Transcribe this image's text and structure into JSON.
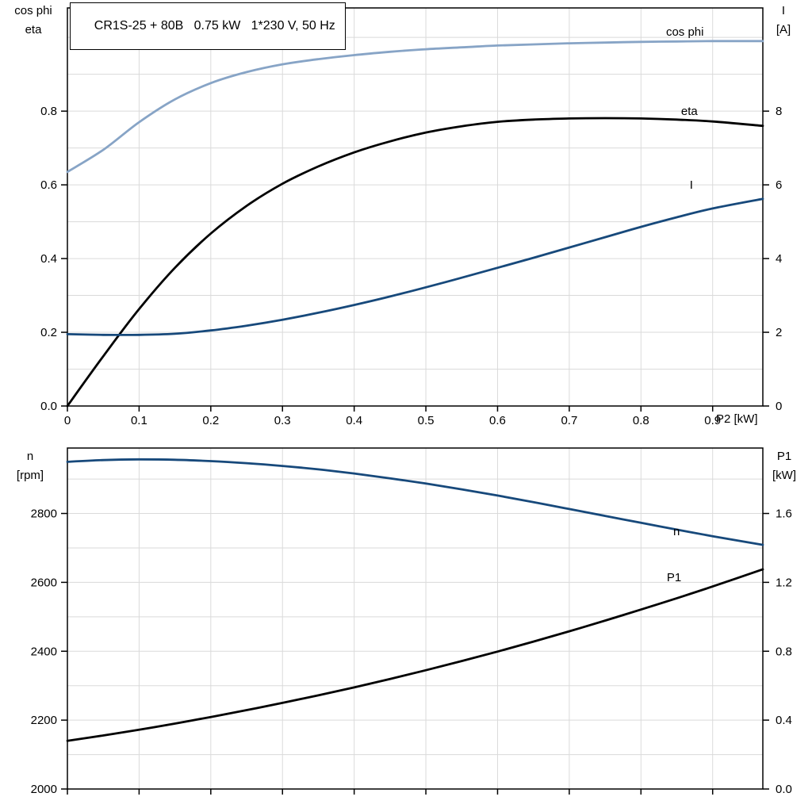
{
  "title": "CR1S-25 + 80B   0.75 kW   1*230 V, 50 Hz",
  "axes": {
    "top_left": [
      "cos phi",
      "eta"
    ],
    "top_right": [
      "I",
      "[A]"
    ],
    "x_label": "P2 [kW]",
    "bottom_left": [
      "n",
      "[rpm]"
    ],
    "bottom_right": [
      "P1",
      "[kW]"
    ]
  },
  "colors": {
    "light_blue": "#87A4C6",
    "dark_blue": "#17497B",
    "black": "#000000",
    "grid": "#DADADA"
  },
  "chart_data": [
    {
      "type": "line",
      "panel": "top",
      "xlabel": "P2 [kW]",
      "ylabel_left": "cos phi / eta",
      "ylabel_right": "I [A]",
      "grid": true,
      "xlim": [
        0,
        0.97
      ],
      "ylim_left": [
        0,
        1.08
      ],
      "ylim_right": [
        0,
        10.8
      ],
      "x_grid": [
        0.1,
        0.2,
        0.3,
        0.4,
        0.5,
        0.6,
        0.7,
        0.8,
        0.9
      ],
      "y_grid": [
        0.1,
        0.2,
        0.3,
        0.4,
        0.5,
        0.6,
        0.7,
        0.8,
        0.9,
        1.0
      ],
      "x_tick_labels": true,
      "x_ticks": [
        {
          "v": 0,
          "t": "0"
        },
        {
          "v": 0.1,
          "t": "0.1"
        },
        {
          "v": 0.2,
          "t": "0.2"
        },
        {
          "v": 0.3,
          "t": "0.3"
        },
        {
          "v": 0.4,
          "t": "0.4"
        },
        {
          "v": 0.5,
          "t": "0.5"
        },
        {
          "v": 0.6,
          "t": "0.6"
        },
        {
          "v": 0.7,
          "t": "0.7"
        },
        {
          "v": 0.8,
          "t": "0.8"
        },
        {
          "v": 0.9,
          "t": "0.9"
        }
      ],
      "y_ticks_left": [
        {
          "v": 0,
          "t": "0.0"
        },
        {
          "v": 0.2,
          "t": "0.2"
        },
        {
          "v": 0.4,
          "t": "0.4"
        },
        {
          "v": 0.6,
          "t": "0.6"
        },
        {
          "v": 0.8,
          "t": "0.8"
        }
      ],
      "y_ticks_right": [
        {
          "v": 0,
          "t": "0"
        },
        {
          "v": 2,
          "t": "2"
        },
        {
          "v": 4,
          "t": "4"
        },
        {
          "v": 6,
          "t": "6"
        },
        {
          "v": 8,
          "t": "8"
        }
      ],
      "x": [
        0,
        0.05,
        0.1,
        0.15,
        0.2,
        0.25,
        0.3,
        0.35,
        0.4,
        0.45,
        0.5,
        0.55,
        0.6,
        0.65,
        0.7,
        0.75,
        0.8,
        0.85,
        0.9,
        0.97
      ],
      "series": [
        {
          "id": "cos-phi",
          "label": "cos phi",
          "axis": "left",
          "color_key": "light_blue",
          "label_at": {
            "x": 0.835,
            "y": 1.015
          },
          "y": [
            0.635,
            0.695,
            0.77,
            0.832,
            0.876,
            0.906,
            0.927,
            0.941,
            0.952,
            0.961,
            0.968,
            0.973,
            0.978,
            0.981,
            0.984,
            0.986,
            0.988,
            0.989,
            0.99,
            0.99
          ]
        },
        {
          "id": "eta",
          "label": "eta",
          "axis": "left",
          "color_key": "black",
          "label_at": {
            "x": 0.856,
            "y": 0.8
          },
          "y": [
            0.0,
            0.135,
            0.263,
            0.375,
            0.468,
            0.543,
            0.603,
            0.65,
            0.688,
            0.718,
            0.742,
            0.759,
            0.771,
            0.777,
            0.78,
            0.781,
            0.78,
            0.777,
            0.772,
            0.76
          ]
        },
        {
          "id": "current",
          "label": "I",
          "axis": "right",
          "color_key": "dark_blue",
          "label_at": {
            "x": 0.868,
            "y": 6.0
          },
          "y": [
            1.95,
            1.93,
            1.93,
            1.96,
            2.05,
            2.18,
            2.34,
            2.53,
            2.74,
            2.97,
            3.22,
            3.48,
            3.75,
            4.02,
            4.3,
            4.58,
            4.86,
            5.12,
            5.36,
            5.62
          ]
        }
      ]
    },
    {
      "type": "line",
      "panel": "bottom",
      "xlabel": "P2 [kW]",
      "ylabel_left": "n [rpm]",
      "ylabel_right": "P1 [kW]",
      "grid": true,
      "xlim": [
        0,
        0.97
      ],
      "ylim_left": [
        2000,
        2990
      ],
      "ylim_right": [
        0,
        1.98
      ],
      "x_grid": [
        0.1,
        0.2,
        0.3,
        0.4,
        0.5,
        0.6,
        0.7,
        0.8,
        0.9
      ],
      "y_grid": [
        2100,
        2200,
        2300,
        2400,
        2500,
        2600,
        2700,
        2800,
        2900
      ],
      "x_tick_labels": false,
      "x_ticks": [
        {
          "v": 0,
          "t": "0"
        },
        {
          "v": 0.1,
          "t": "0.1"
        },
        {
          "v": 0.2,
          "t": "0.2"
        },
        {
          "v": 0.3,
          "t": "0.3"
        },
        {
          "v": 0.4,
          "t": "0.4"
        },
        {
          "v": 0.5,
          "t": "0.5"
        },
        {
          "v": 0.6,
          "t": "0.6"
        },
        {
          "v": 0.7,
          "t": "0.7"
        },
        {
          "v": 0.8,
          "t": "0.8"
        },
        {
          "v": 0.9,
          "t": "0.9"
        }
      ],
      "y_ticks_left": [
        {
          "v": 2000,
          "t": "2000"
        },
        {
          "v": 2200,
          "t": "2200"
        },
        {
          "v": 2400,
          "t": "2400"
        },
        {
          "v": 2600,
          "t": "2600"
        },
        {
          "v": 2800,
          "t": "2800"
        }
      ],
      "y_ticks_right": [
        {
          "v": 0,
          "t": "0.0"
        },
        {
          "v": 0.4,
          "t": "0.4"
        },
        {
          "v": 0.8,
          "t": "0.8"
        },
        {
          "v": 1.2,
          "t": "1.2"
        },
        {
          "v": 1.6,
          "t": "1.6"
        }
      ],
      "x": [
        0,
        0.05,
        0.1,
        0.15,
        0.2,
        0.25,
        0.3,
        0.35,
        0.4,
        0.45,
        0.5,
        0.55,
        0.6,
        0.65,
        0.7,
        0.75,
        0.8,
        0.85,
        0.9,
        0.97
      ],
      "series": [
        {
          "id": "speed",
          "label": "n",
          "axis": "left",
          "color_key": "dark_blue",
          "label_at": {
            "x": 0.845,
            "y": 2748
          },
          "y": [
            2950,
            2955,
            2957,
            2956,
            2952,
            2946,
            2938,
            2928,
            2916,
            2902,
            2887,
            2870,
            2852,
            2833,
            2813,
            2793,
            2773,
            2753,
            2734,
            2709
          ]
        },
        {
          "id": "p1",
          "label": "P1",
          "axis": "right",
          "color_key": "black",
          "label_at": {
            "x": 0.836,
            "y": 1.23
          },
          "y": [
            0.28,
            0.311,
            0.344,
            0.38,
            0.418,
            0.458,
            0.5,
            0.544,
            0.59,
            0.639,
            0.69,
            0.743,
            0.798,
            0.856,
            0.916,
            0.978,
            1.042,
            1.108,
            1.176,
            1.276
          ]
        }
      ]
    }
  ]
}
